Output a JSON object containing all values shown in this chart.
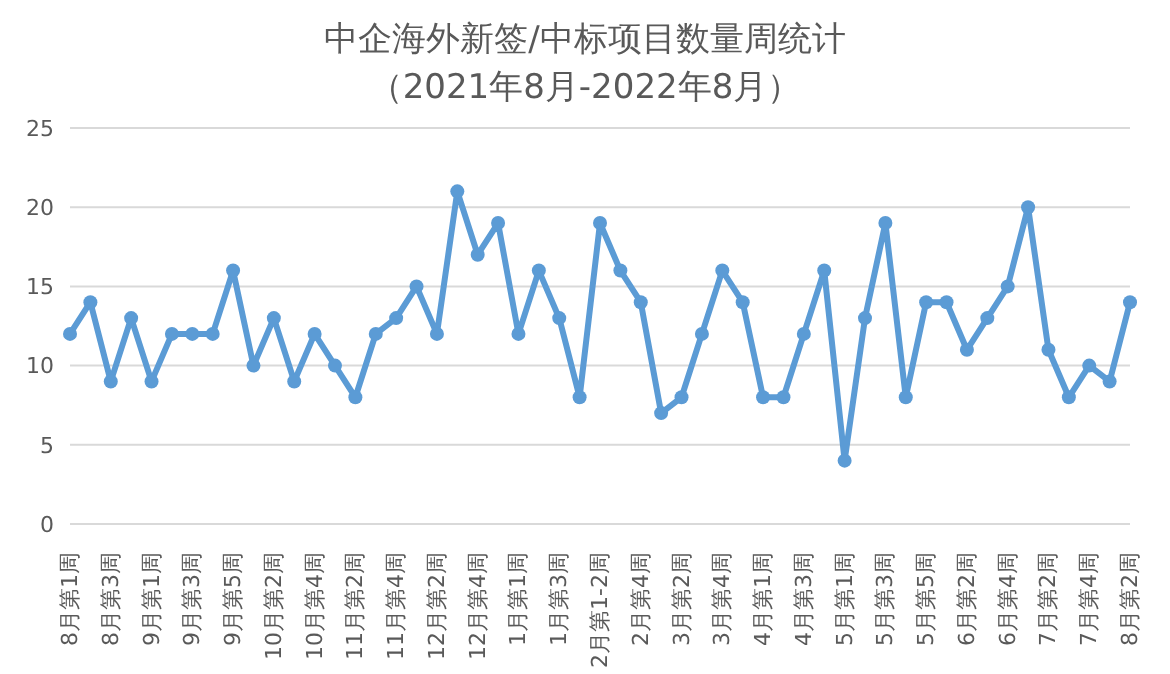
{
  "chart_data": {
    "type": "line",
    "title": "中企海外新签/中标项目数量周统计",
    "subtitle": "（2021年8月-2022年8月）",
    "categories": [
      "8月第1周",
      null,
      "8月第3周",
      null,
      "9月第1周",
      null,
      "9月第3周",
      null,
      "9月第5周",
      null,
      "10月第2周",
      null,
      "10月第4周",
      null,
      "11月第2周",
      null,
      "11月第4周",
      null,
      "12月第2周",
      null,
      "12月第4周",
      null,
      "1月第1周",
      null,
      "1月第3周",
      null,
      "2月第1-2周",
      null,
      "2月第4周",
      null,
      "3月第2周",
      null,
      "3月第4周",
      null,
      "4月第1周",
      null,
      "4月第3周",
      null,
      "5月第1周",
      null,
      "5月第3周",
      null,
      "5月第5周",
      null,
      "6月第2周",
      null,
      "6月第4周",
      null,
      "7月第2周",
      null,
      "7月第4周",
      null,
      "8月第2周"
    ],
    "series": [
      {
        "color": "#5b9bd5",
        "values": [
          12,
          14,
          9,
          13,
          9,
          12,
          12,
          12,
          16,
          10,
          13,
          9,
          12,
          10,
          8,
          12,
          13,
          15,
          12,
          21,
          17,
          19,
          12,
          16,
          13,
          8,
          19,
          16,
          14,
          7,
          8,
          12,
          16,
          14,
          8,
          8,
          12,
          16,
          4,
          13,
          19,
          8,
          14,
          14,
          11,
          13,
          15,
          20,
          11,
          8,
          10,
          9,
          14
        ]
      }
    ],
    "ylim": [
      0,
      25
    ],
    "yticks": [
      0,
      5,
      10,
      15,
      20,
      25
    ],
    "grid": "y",
    "marker": "circle",
    "line_style": "solid"
  }
}
